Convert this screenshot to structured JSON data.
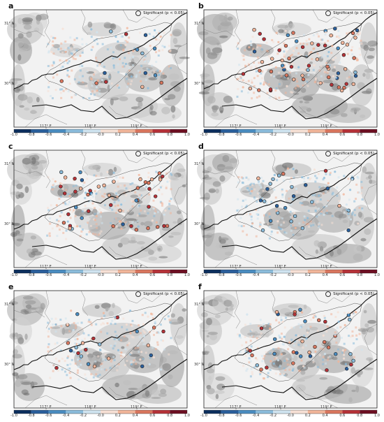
{
  "panels": [
    {
      "label": "a"
    },
    {
      "label": "b"
    },
    {
      "label": "c"
    },
    {
      "label": "d"
    },
    {
      "label": "e"
    },
    {
      "label": "f"
    }
  ],
  "legend_text": "Significant (p < 0.05)",
  "lat_labels": [
    "31° N",
    "30° N"
  ],
  "lon_labels": [
    "117° E",
    "118° E",
    "119° E"
  ],
  "colorbar": {
    "ticks": [
      "-1.0",
      "-0.8",
      "-0.6",
      "-0.4",
      "-0.2",
      "-0.0",
      "0.2",
      "0.4",
      "0.6",
      "0.8",
      "1.0"
    ],
    "colors": [
      "#0c2f5e",
      "#2a5f9c",
      "#4a8cc0",
      "#8bbcdb",
      "#cfe3ef",
      "#f6e0d5",
      "#f1b59a",
      "#d9765e",
      "#b53238",
      "#6d0f22"
    ]
  }
}
